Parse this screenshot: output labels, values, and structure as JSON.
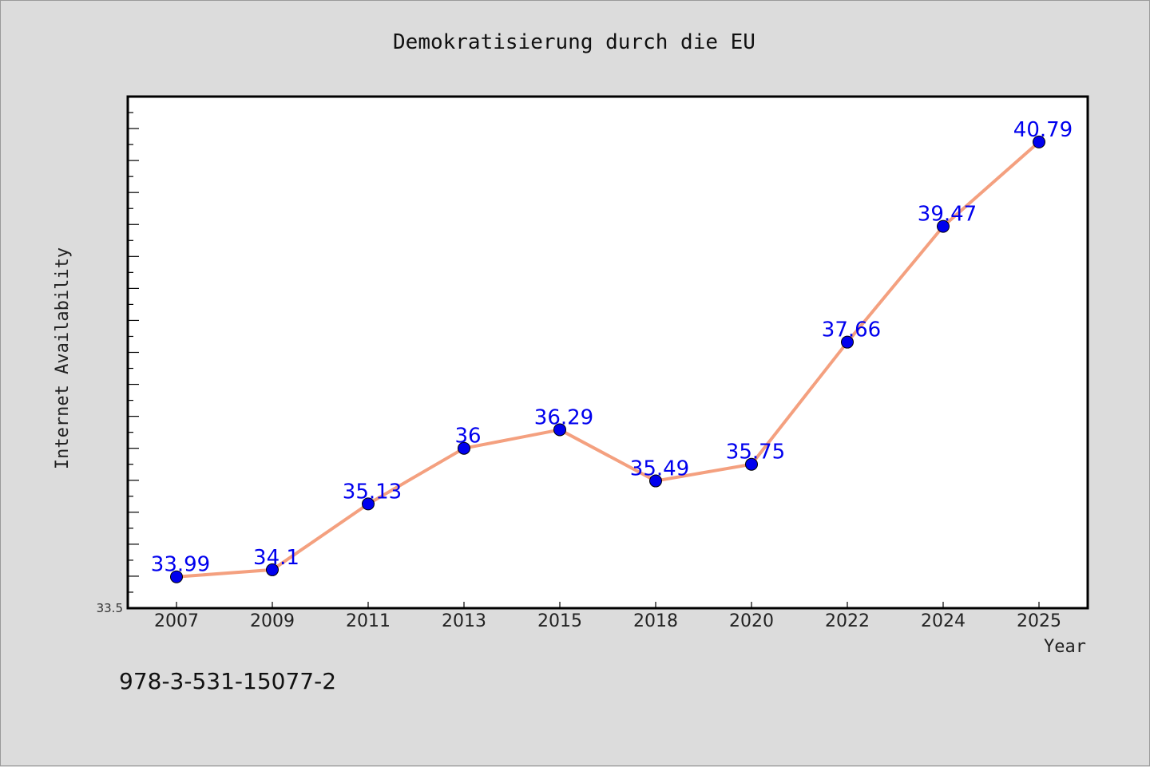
{
  "chart_data": {
    "type": "line",
    "title": "Demokratisierung durch die EU",
    "xlabel": "Year",
    "ylabel": "Internet Availability",
    "categories": [
      "2007",
      "2009",
      "2011",
      "2013",
      "2015",
      "2018",
      "2020",
      "2022",
      "2024",
      "2025"
    ],
    "series": [
      {
        "values": [
          33.99,
          34.1,
          35.13,
          36,
          36.29,
          35.49,
          35.75,
          37.66,
          39.47,
          40.79
        ],
        "labels": [
          "33.99",
          "34.1",
          "35.13",
          "36",
          "36.29",
          "35.49",
          "35.75",
          "37.66",
          "39.47",
          "40.79"
        ]
      }
    ],
    "ylim": [
      33.5,
      41.5
    ],
    "yticks_labeled": [
      "33.5"
    ],
    "grid": false,
    "legend": "none",
    "line_color": "#f4a07f",
    "marker_color": "#0000ee",
    "label_color": "#0000ee"
  },
  "footer": {
    "isbn": "978-3-531-15077-2"
  }
}
